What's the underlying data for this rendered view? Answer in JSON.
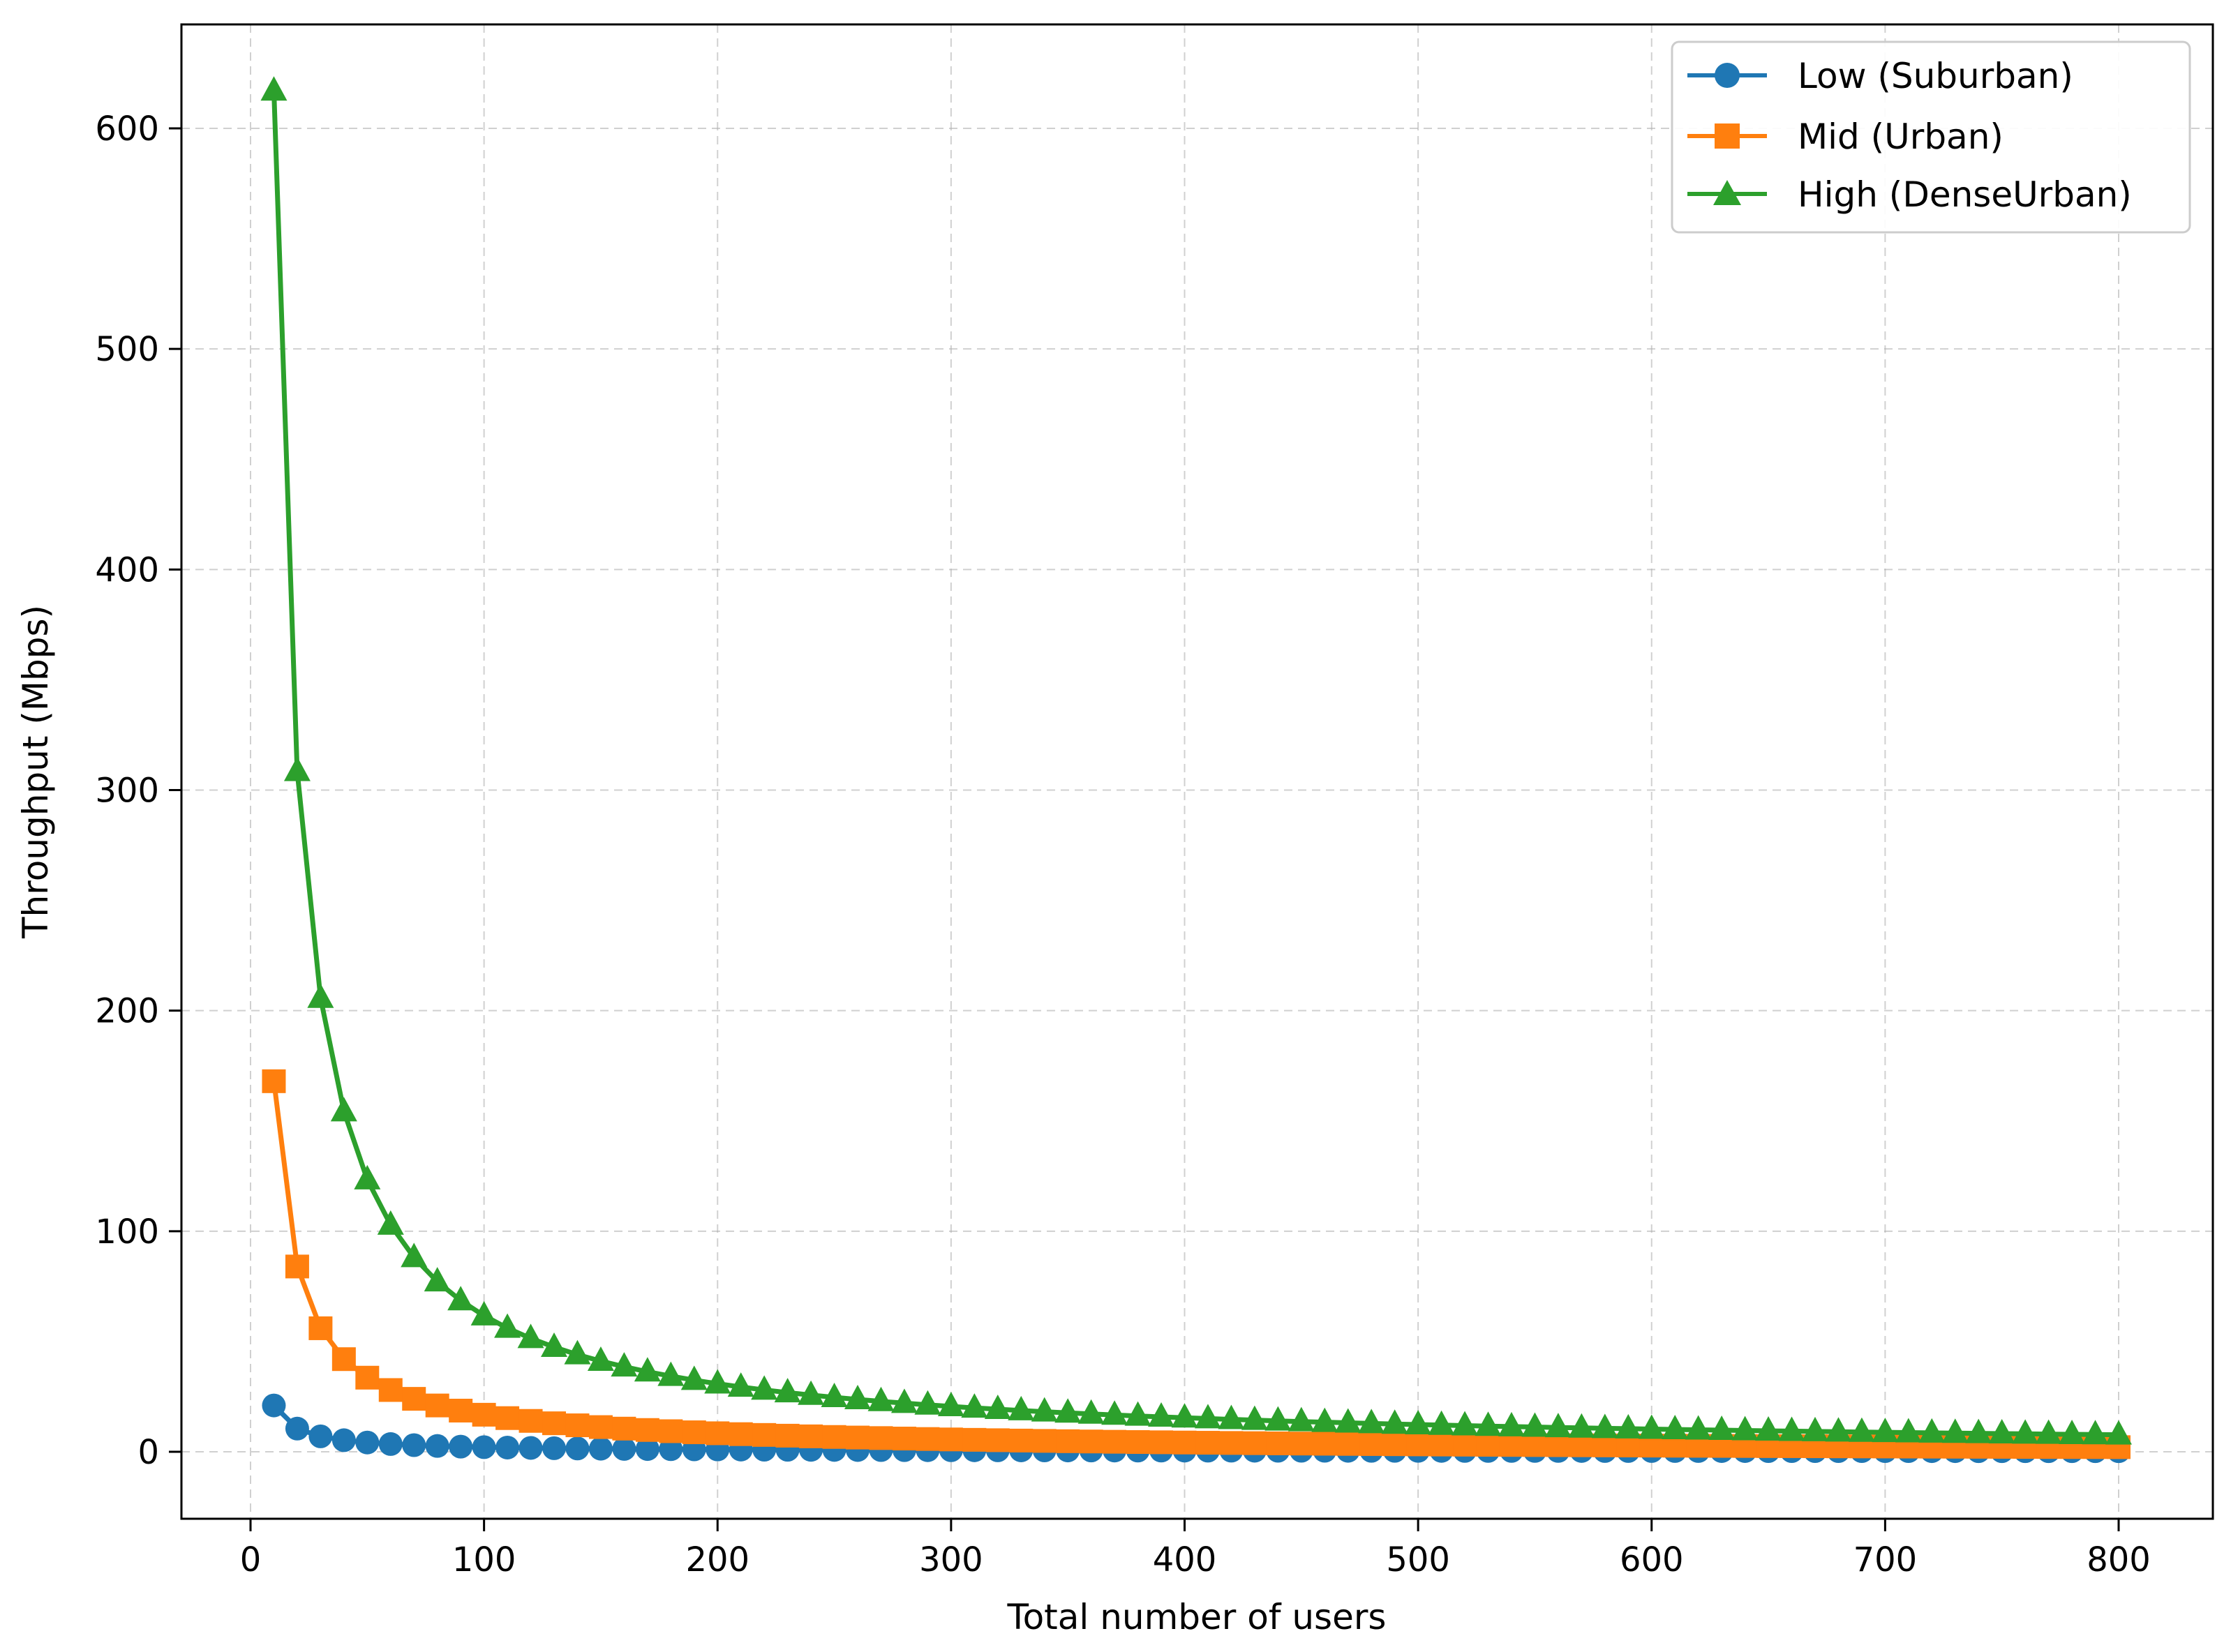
{
  "chart_data": {
    "type": "line",
    "title": "",
    "xlabel": "Total number of users",
    "ylabel": "Throughput (Mbps)",
    "xlim": [
      -30,
      840
    ],
    "ylim": [
      -30,
      645
    ],
    "xticks": [
      0,
      100,
      200,
      300,
      400,
      500,
      600,
      700,
      800
    ],
    "yticks": [
      0,
      100,
      200,
      300,
      400,
      500,
      600
    ],
    "grid": true,
    "legend_position": "upper right",
    "x": [
      10,
      20,
      30,
      40,
      50,
      60,
      70,
      80,
      90,
      100,
      110,
      120,
      130,
      140,
      150,
      160,
      170,
      180,
      190,
      200,
      210,
      220,
      230,
      240,
      250,
      260,
      270,
      280,
      290,
      300,
      310,
      320,
      330,
      340,
      350,
      360,
      370,
      380,
      390,
      400,
      410,
      420,
      430,
      440,
      450,
      460,
      470,
      480,
      490,
      500,
      510,
      520,
      530,
      540,
      550,
      560,
      570,
      580,
      590,
      600,
      610,
      620,
      630,
      640,
      650,
      660,
      670,
      680,
      690,
      700,
      710,
      720,
      730,
      740,
      750,
      760,
      770,
      780,
      790,
      800
    ],
    "series": [
      {
        "name": "Low (Suburban)",
        "color": "#1f77b4",
        "marker": "circle",
        "values": [
          21.0,
          10.5,
          7.0,
          5.25,
          4.2,
          3.5,
          3.0,
          2.63,
          2.33,
          2.1,
          1.91,
          1.75,
          1.62,
          1.5,
          1.4,
          1.31,
          1.24,
          1.17,
          1.11,
          1.05,
          1.0,
          0.95,
          0.91,
          0.88,
          0.84,
          0.81,
          0.78,
          0.75,
          0.72,
          0.7,
          0.68,
          0.66,
          0.64,
          0.62,
          0.6,
          0.58,
          0.57,
          0.55,
          0.54,
          0.53,
          0.51,
          0.5,
          0.49,
          0.48,
          0.47,
          0.46,
          0.45,
          0.44,
          0.43,
          0.42,
          0.41,
          0.4,
          0.4,
          0.39,
          0.38,
          0.38,
          0.37,
          0.36,
          0.36,
          0.35,
          0.34,
          0.34,
          0.33,
          0.33,
          0.32,
          0.32,
          0.31,
          0.31,
          0.3,
          0.3,
          0.3,
          0.29,
          0.29,
          0.28,
          0.28,
          0.28,
          0.27,
          0.27,
          0.27,
          0.26
        ]
      },
      {
        "name": "Mid (Urban)",
        "color": "#ff7f0e",
        "marker": "square",
        "values": [
          168.0,
          84.0,
          56.0,
          42.0,
          33.6,
          28.0,
          24.0,
          21.0,
          18.67,
          16.8,
          15.27,
          14.0,
          12.92,
          12.0,
          11.2,
          10.5,
          9.88,
          9.33,
          8.84,
          8.4,
          8.0,
          7.64,
          7.3,
          7.0,
          6.72,
          6.46,
          6.22,
          6.0,
          5.79,
          5.6,
          5.42,
          5.25,
          5.09,
          4.94,
          4.8,
          4.67,
          4.54,
          4.42,
          4.31,
          4.2,
          4.1,
          4.0,
          3.91,
          3.82,
          3.73,
          3.65,
          3.57,
          3.5,
          3.43,
          3.36,
          3.29,
          3.23,
          3.17,
          3.11,
          3.05,
          3.0,
          2.95,
          2.9,
          2.85,
          2.8,
          2.75,
          2.71,
          2.67,
          2.63,
          2.58,
          2.55,
          2.51,
          2.47,
          2.43,
          2.4,
          2.37,
          2.33,
          2.3,
          2.27,
          2.24,
          2.21,
          2.18,
          2.15,
          2.13,
          2.1
        ]
      },
      {
        "name": "High (DenseUrban)",
        "color": "#2ca02c",
        "marker": "triangle-up",
        "values": [
          617.0,
          308.5,
          205.67,
          154.25,
          123.4,
          102.83,
          88.14,
          77.13,
          68.56,
          61.7,
          56.09,
          51.42,
          47.46,
          44.07,
          41.13,
          38.56,
          36.29,
          34.28,
          32.47,
          30.85,
          29.38,
          28.05,
          26.83,
          25.71,
          24.68,
          23.73,
          22.85,
          22.04,
          21.28,
          20.57,
          19.9,
          19.28,
          18.7,
          18.15,
          17.63,
          17.14,
          16.68,
          16.24,
          15.82,
          15.43,
          15.05,
          14.69,
          14.35,
          14.02,
          13.71,
          13.41,
          13.13,
          12.85,
          12.59,
          12.34,
          12.1,
          11.87,
          11.64,
          11.43,
          11.22,
          11.02,
          10.82,
          10.64,
          10.46,
          10.28,
          10.11,
          9.95,
          9.79,
          9.64,
          9.49,
          9.35,
          9.21,
          9.07,
          8.94,
          8.81,
          8.69,
          8.57,
          8.45,
          8.34,
          8.23,
          8.12,
          8.01,
          7.91,
          7.81,
          7.71
        ]
      }
    ]
  },
  "axes": {
    "xlabel": "Total number of users",
    "ylabel": "Throughput (Mbps)",
    "xtick_labels": [
      "0",
      "100",
      "200",
      "300",
      "400",
      "500",
      "600",
      "700",
      "800"
    ],
    "ytick_labels": [
      "0",
      "100",
      "200",
      "300",
      "400",
      "500",
      "600"
    ]
  },
  "legend": {
    "items": [
      {
        "label": "Low (Suburban)",
        "color": "#1f77b4",
        "icon": "circle-marker-icon"
      },
      {
        "label": "Mid (Urban)",
        "color": "#ff7f0e",
        "icon": "square-marker-icon"
      },
      {
        "label": "High (DenseUrban)",
        "color": "#2ca02c",
        "icon": "triangle-marker-icon"
      }
    ]
  }
}
